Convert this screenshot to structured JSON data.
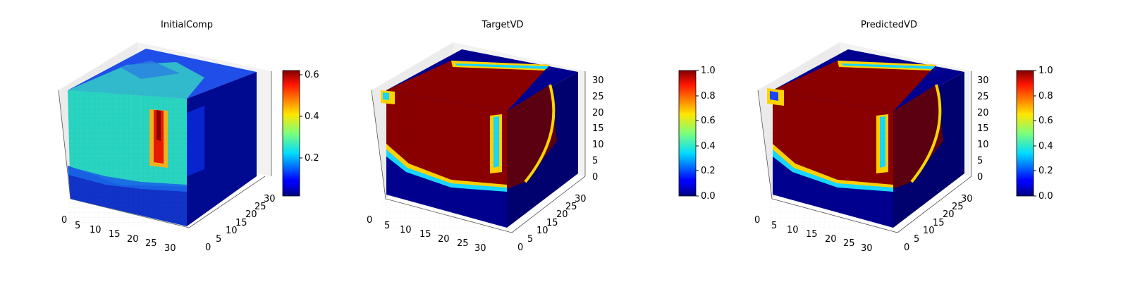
{
  "chart_data": [
    {
      "type": "heatmap",
      "subtype": "3d-voxel",
      "title": "InitialComp",
      "xlabel": "",
      "ylabel": "",
      "zlabel": "",
      "x_ticks": [
        "0",
        "5",
        "10",
        "15",
        "20",
        "25",
        "30"
      ],
      "y_ticks": [
        "0",
        "5",
        "10",
        "15",
        "20",
        "25",
        "30"
      ],
      "z_ticks": [],
      "xlim": [
        0,
        32
      ],
      "ylim": [
        0,
        32
      ],
      "zlim": [
        0,
        32
      ],
      "colormap": "jet",
      "colorbar": {
        "min": 0.02,
        "max": 0.62,
        "ticks": [
          "0.2",
          "0.4",
          "0.6"
        ]
      },
      "grid": true
    },
    {
      "type": "heatmap",
      "subtype": "3d-voxel",
      "title": "TargetVD",
      "xlabel": "",
      "ylabel": "",
      "zlabel": "",
      "x_ticks": [
        "0",
        "5",
        "10",
        "15",
        "20",
        "25",
        "30"
      ],
      "y_ticks": [
        "0",
        "5",
        "10",
        "15",
        "20",
        "25",
        "30"
      ],
      "z_ticks": [
        "0",
        "5",
        "10",
        "15",
        "20",
        "25",
        "30"
      ],
      "xlim": [
        0,
        32
      ],
      "ylim": [
        0,
        32
      ],
      "zlim": [
        0,
        32
      ],
      "colormap": "jet",
      "colorbar": {
        "min": 0.0,
        "max": 1.0,
        "ticks": [
          "0.0",
          "0.2",
          "0.4",
          "0.6",
          "0.8",
          "1.0"
        ]
      },
      "grid": true
    },
    {
      "type": "heatmap",
      "subtype": "3d-voxel",
      "title": "PredictedVD",
      "xlabel": "",
      "ylabel": "",
      "zlabel": "",
      "x_ticks": [
        "0",
        "5",
        "10",
        "15",
        "20",
        "25",
        "30"
      ],
      "y_ticks": [
        "0",
        "5",
        "10",
        "15",
        "20",
        "25",
        "30"
      ],
      "z_ticks": [
        "0",
        "5",
        "10",
        "15",
        "20",
        "25",
        "30"
      ],
      "xlim": [
        0,
        32
      ],
      "ylim": [
        0,
        32
      ],
      "zlim": [
        0,
        32
      ],
      "colormap": "jet",
      "colorbar": {
        "min": 0.0,
        "max": 1.0,
        "ticks": [
          "0.0",
          "0.2",
          "0.4",
          "0.6",
          "0.8",
          "1.0"
        ]
      },
      "grid": true
    }
  ]
}
